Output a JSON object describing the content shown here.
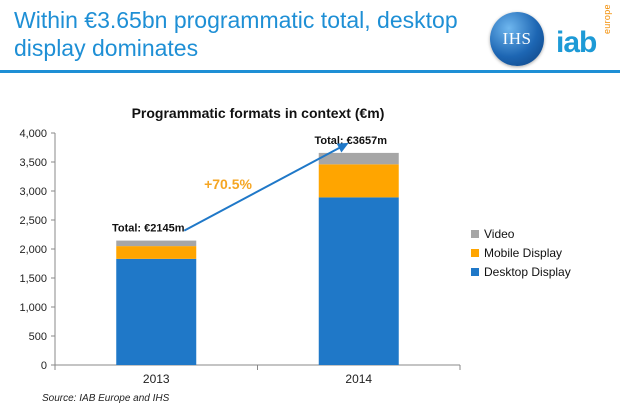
{
  "header": {
    "title": "Within €3.65bn programmatic total, desktop display dominates",
    "rule_color": "#1e8fd5"
  },
  "logos": {
    "ihs": "IHS",
    "iab": "iab",
    "iab_sub": "europe"
  },
  "source": "Source: IAB Europe and IHS",
  "chart_data": {
    "type": "bar",
    "stacked": true,
    "title": "Programmatic formats in context (€m)",
    "categories": [
      "2013",
      "2014"
    ],
    "series": [
      {
        "name": "Desktop  Display",
        "color": "#1f78c8",
        "values": [
          1830,
          2890
        ]
      },
      {
        "name": "Mobile  Display",
        "color": "#ffa500",
        "values": [
          220,
          570
        ]
      },
      {
        "name": "Video",
        "color": "#a6a6a6",
        "values": [
          95,
          197
        ]
      }
    ],
    "totals": [
      "Total: €2145m",
      "Total: €3657m"
    ],
    "growth_label": "+70.5%",
    "growth_color": "#f5a623",
    "ylim": [
      0,
      4000
    ],
    "yticks": [
      0,
      500,
      1000,
      1500,
      2000,
      2500,
      3000,
      3500,
      4000
    ],
    "ytick_labels": [
      "0",
      "500",
      "1,000",
      "1,500",
      "2,000",
      "2,500",
      "3,000",
      "3,500",
      "4,000"
    ],
    "grid": false,
    "legend_position": "right"
  }
}
